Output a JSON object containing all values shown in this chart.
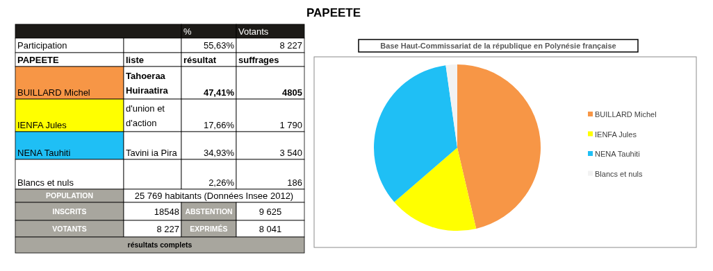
{
  "chart_data": [
    {
      "type": "other",
      "title": "PAPEETE",
      "annotations": [
        "%",
        "Votants",
        "Participation",
        "55,63%",
        "8 227",
        "PAPEETE",
        "liste",
        "résultat",
        "suffrages",
        "BUILLARD Michel",
        "Tahoeraa Huiraatira",
        "47,41%",
        "4805",
        "IENFA Jules",
        "d'union et d'action",
        "17,66%",
        "1 790",
        "NENA Tauhiti",
        "Tavini ia Pira",
        "34,93%",
        "3 540",
        "Blancs et nuls",
        "2,26%",
        "186",
        "POPULATION",
        "25 769 habitants (Données Insee 2012)",
        "INSCRITS",
        "18548",
        "ABSTENTION",
        "9 625",
        "VOTANTS",
        "8 227",
        "EXPRIMÉS",
        "8 041",
        "résultats complets"
      ]
    },
    {
      "type": "pie",
      "title": "Base Haut-Commissariat de la république en Polynésie française",
      "categories": [
        "BUILLARD Michel",
        "IENFA Jules",
        "NENA Tauhiti",
        "Blancs et nuls"
      ],
      "values": [
        46.36,
        17.27,
        34.16,
        2.21
      ],
      "colors": [
        "#f79646",
        "#ffff00",
        "#1fbff5",
        "#f2f2f2"
      ],
      "legend": "right"
    }
  ]
}
